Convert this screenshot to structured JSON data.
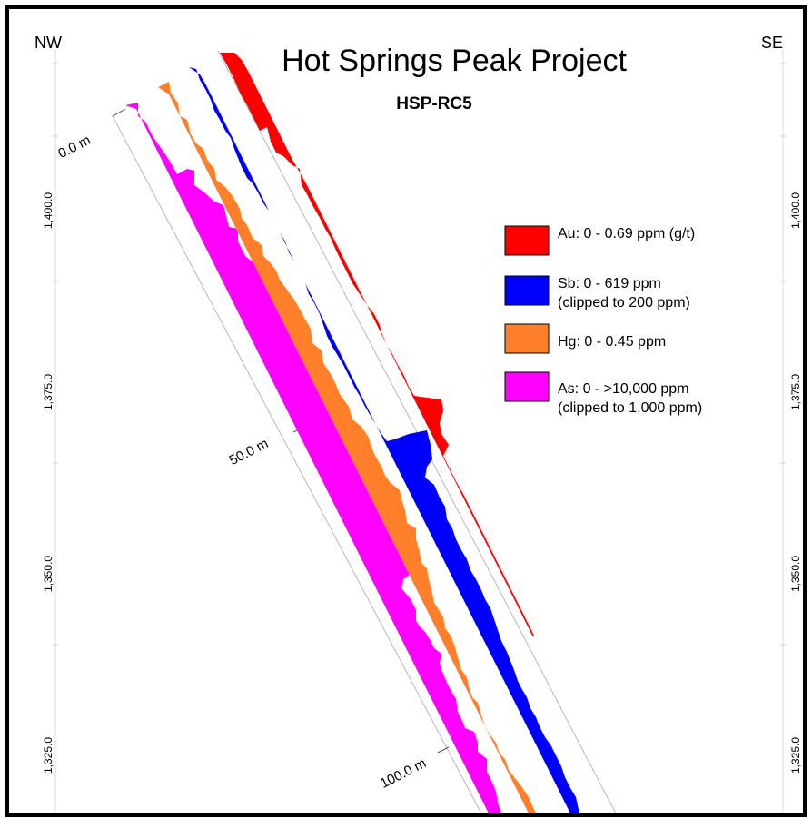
{
  "corners": {
    "left": "NW",
    "right": "SE"
  },
  "title": "Hot Springs Peak Project",
  "subtitle": "HSP-RC5",
  "elevation_labels": [
    "1,400.0",
    "1,375.0",
    "1,350.0",
    "1,325.0"
  ],
  "depth_labels": [
    "0.0 m",
    "50.0 m",
    "100.0 m"
  ],
  "legend": [
    {
      "key": "au",
      "line1": "Au: 0 - 0.69 ppm (g/t)",
      "line2": "",
      "color": "#ff0000"
    },
    {
      "key": "sb",
      "line1": "Sb: 0 - 619 ppm",
      "line2": "(clipped to 200 ppm)",
      "color": "#0000ff"
    },
    {
      "key": "hg",
      "line1": "Hg: 0 - 0.45 ppm",
      "line2": "",
      "color": "#ff7f2a"
    },
    {
      "key": "as",
      "line1": "As: 0 - >10,000 ppm",
      "line2": "(clipped to 1,000 ppm)",
      "color": "#ff00ff"
    }
  ]
}
